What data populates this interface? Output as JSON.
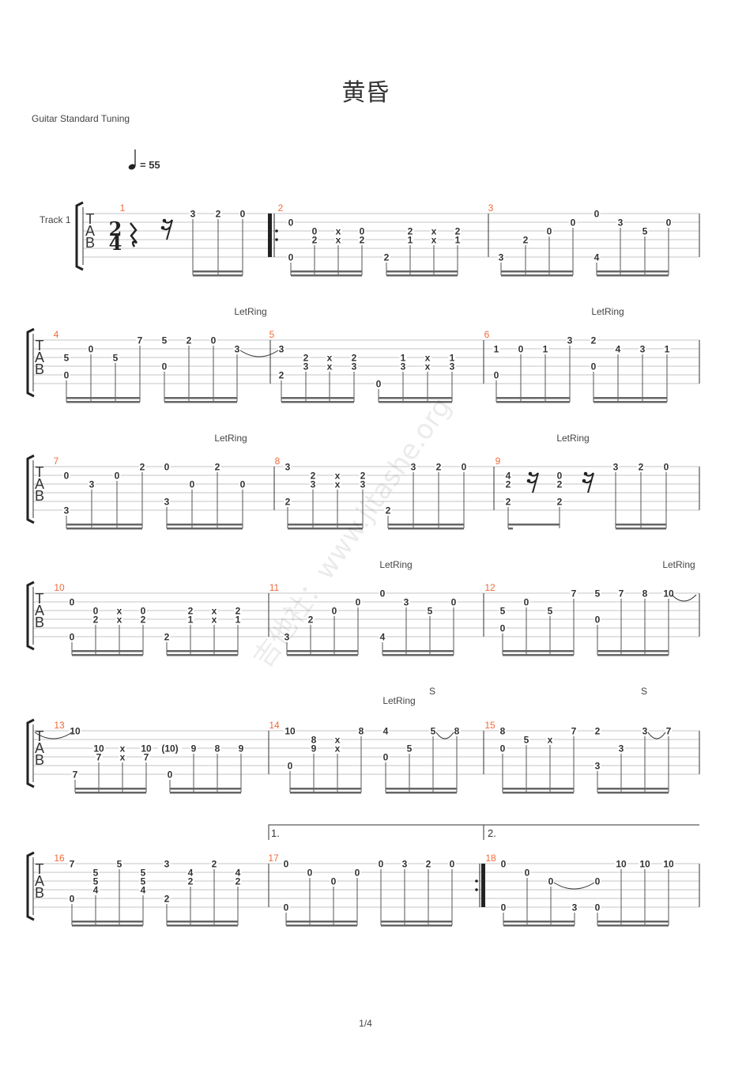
{
  "title": "黄昏",
  "tuning": "Guitar Standard Tuning",
  "tempo": {
    "symbol": "quarter-note",
    "text": "= 55"
  },
  "track": "Track 1",
  "tab_clef": [
    "T",
    "A",
    "B"
  ],
  "time_signature": {
    "top": "2",
    "bottom": "4"
  },
  "page_number": "1/4",
  "watermark": "吉他社：www.jitashe.org",
  "voltas": [
    "1.",
    "2."
  ],
  "colors": {
    "measure_number": "#f26a3b",
    "staff": "#bbbbbb",
    "text": "#333333"
  },
  "measures": [
    {
      "number": "1",
      "rests": [
        "quarter",
        "sixteenth"
      ],
      "beats": [
        [
          [
            1,
            "3"
          ]
        ],
        [
          [
            1,
            "2"
          ]
        ],
        [
          [
            1,
            "0"
          ]
        ]
      ]
    },
    {
      "number": "2",
      "repeat_start": true,
      "beats": [
        [
          [
            2,
            "0"
          ],
          [
            6,
            "0"
          ]
        ],
        [
          [
            3,
            "0"
          ],
          [
            4,
            "2"
          ]
        ],
        [
          [
            3,
            "x"
          ],
          [
            4,
            "x"
          ]
        ],
        [
          [
            3,
            "0"
          ],
          [
            4,
            "2"
          ]
        ],
        [
          [
            6,
            "2"
          ]
        ],
        [
          [
            3,
            "2"
          ],
          [
            4,
            "1"
          ]
        ],
        [
          [
            3,
            "x"
          ],
          [
            4,
            "x"
          ]
        ],
        [
          [
            3,
            "2"
          ],
          [
            4,
            "1"
          ]
        ]
      ]
    },
    {
      "number": "3",
      "annotations": [
        "LetRing"
      ],
      "beats": [
        [
          [
            6,
            "3"
          ]
        ],
        [
          [
            4,
            "2"
          ]
        ],
        [
          [
            3,
            "0"
          ]
        ],
        [
          [
            2,
            "0"
          ]
        ],
        [
          [
            1,
            "0"
          ],
          [
            6,
            "4"
          ]
        ],
        [
          [
            2,
            "3"
          ]
        ],
        [
          [
            3,
            "5"
          ]
        ],
        [
          [
            2,
            "0"
          ]
        ]
      ]
    },
    {
      "number": "4",
      "annotations": [
        "LetRing"
      ],
      "beats": [
        [
          [
            3,
            "5"
          ],
          [
            5,
            "0"
          ]
        ],
        [
          [
            2,
            "0"
          ]
        ],
        [
          [
            3,
            "5"
          ]
        ],
        [
          [
            1,
            "7"
          ]
        ],
        [
          [
            1,
            "5"
          ],
          [
            4,
            "0"
          ]
        ],
        [
          [
            1,
            "2"
          ]
        ],
        [
          [
            1,
            "0"
          ]
        ],
        [
          [
            2,
            "3"
          ]
        ]
      ]
    },
    {
      "number": "5",
      "beats": [
        [
          [
            2,
            "3"
          ],
          [
            5,
            "2"
          ]
        ],
        [
          [
            3,
            "2"
          ],
          [
            4,
            "3"
          ]
        ],
        [
          [
            3,
            "x"
          ],
          [
            4,
            "x"
          ]
        ],
        [
          [
            3,
            "2"
          ],
          [
            4,
            "3"
          ]
        ],
        [
          [
            6,
            "0"
          ]
        ],
        [
          [
            3,
            "1"
          ],
          [
            4,
            "3"
          ]
        ],
        [
          [
            3,
            "x"
          ],
          [
            4,
            "x"
          ]
        ],
        [
          [
            3,
            "1"
          ],
          [
            4,
            "3"
          ]
        ]
      ]
    },
    {
      "number": "6",
      "annotations": [
        "LetRing"
      ],
      "beats": [
        [
          [
            2,
            "1"
          ],
          [
            5,
            "0"
          ]
        ],
        [
          [
            2,
            "0"
          ]
        ],
        [
          [
            2,
            "1"
          ]
        ],
        [
          [
            1,
            "3"
          ]
        ],
        [
          [
            1,
            "2"
          ],
          [
            4,
            "0"
          ]
        ],
        [
          [
            2,
            "4"
          ]
        ],
        [
          [
            2,
            "3"
          ]
        ],
        [
          [
            2,
            "1"
          ]
        ]
      ]
    },
    {
      "number": "7",
      "annotations": [
        "LetRing"
      ],
      "beats": [
        [
          [
            2,
            "0"
          ],
          [
            6,
            "3"
          ]
        ],
        [
          [
            3,
            "3"
          ]
        ],
        [
          [
            2,
            "0"
          ]
        ],
        [
          [
            1,
            "2"
          ]
        ],
        [
          [
            1,
            "0"
          ],
          [
            5,
            "3"
          ]
        ],
        [
          [
            3,
            "0"
          ]
        ],
        [
          [
            1,
            "2"
          ]
        ],
        [
          [
            3,
            "0"
          ]
        ]
      ]
    },
    {
      "number": "8",
      "beats": [
        [
          [
            1,
            "3"
          ],
          [
            5,
            "2"
          ]
        ],
        [
          [
            2,
            "2"
          ],
          [
            3,
            "3"
          ]
        ],
        [
          [
            2,
            "x"
          ],
          [
            3,
            "x"
          ]
        ],
        [
          [
            2,
            "2"
          ],
          [
            3,
            "3"
          ]
        ],
        [
          [
            6,
            "2"
          ]
        ],
        [
          [
            1,
            "3"
          ]
        ],
        [
          [
            1,
            "2"
          ]
        ],
        [
          [
            1,
            "0"
          ]
        ]
      ]
    },
    {
      "number": "9",
      "annotations": [
        "LetRing"
      ],
      "rests": [
        "sixteenth",
        "sixteenth"
      ],
      "beats": [
        [
          [
            2,
            "4"
          ],
          [
            3,
            "2"
          ],
          [
            5,
            "2"
          ]
        ],
        [
          [
            2,
            "0"
          ],
          [
            3,
            "2"
          ],
          [
            5,
            "2"
          ]
        ],
        [
          [
            1,
            "3"
          ]
        ],
        [
          [
            1,
            "2"
          ]
        ],
        [
          [
            1,
            "0"
          ]
        ]
      ]
    },
    {
      "number": "10",
      "beats": [
        [
          [
            2,
            "0"
          ],
          [
            6,
            "0"
          ]
        ],
        [
          [
            3,
            "0"
          ],
          [
            4,
            "2"
          ]
        ],
        [
          [
            3,
            "x"
          ],
          [
            4,
            "x"
          ]
        ],
        [
          [
            3,
            "0"
          ],
          [
            4,
            "2"
          ]
        ],
        [
          [
            6,
            "2"
          ]
        ],
        [
          [
            3,
            "2"
          ],
          [
            4,
            "1"
          ]
        ],
        [
          [
            3,
            "x"
          ],
          [
            4,
            "x"
          ]
        ],
        [
          [
            3,
            "2"
          ],
          [
            4,
            "1"
          ]
        ]
      ]
    },
    {
      "number": "11",
      "annotations": [
        "LetRing"
      ],
      "beats": [
        [
          [
            6,
            "3"
          ]
        ],
        [
          [
            4,
            "2"
          ]
        ],
        [
          [
            3,
            "0"
          ]
        ],
        [
          [
            2,
            "0"
          ]
        ],
        [
          [
            1,
            "0"
          ],
          [
            6,
            "4"
          ]
        ],
        [
          [
            2,
            "3"
          ]
        ],
        [
          [
            3,
            "5"
          ]
        ],
        [
          [
            2,
            "0"
          ]
        ]
      ]
    },
    {
      "number": "12",
      "annotations": [
        "LetRing"
      ],
      "beats": [
        [
          [
            3,
            "5"
          ],
          [
            5,
            "0"
          ]
        ],
        [
          [
            2,
            "0"
          ]
        ],
        [
          [
            3,
            "5"
          ]
        ],
        [
          [
            1,
            "7"
          ]
        ],
        [
          [
            1,
            "5"
          ],
          [
            4,
            "0"
          ]
        ],
        [
          [
            1,
            "7"
          ]
        ],
        [
          [
            1,
            "8"
          ]
        ],
        [
          [
            1,
            "10"
          ]
        ]
      ]
    },
    {
      "number": "13",
      "beats": [
        [
          [
            1,
            "10"
          ],
          [
            6,
            "7"
          ]
        ],
        [
          [
            3,
            "10"
          ],
          [
            4,
            "7"
          ]
        ],
        [
          [
            3,
            "x"
          ],
          [
            4,
            "x"
          ]
        ],
        [
          [
            3,
            "10"
          ],
          [
            4,
            "7"
          ]
        ],
        [
          [
            3,
            "(10)"
          ],
          [
            6,
            "0"
          ]
        ],
        [
          [
            3,
            "9"
          ]
        ],
        [
          [
            3,
            "8"
          ]
        ],
        [
          [
            3,
            "9"
          ]
        ]
      ]
    },
    {
      "number": "14",
      "annotations": [
        "LetRing",
        "S"
      ],
      "beats": [
        [
          [
            1,
            "10"
          ],
          [
            5,
            "0"
          ]
        ],
        [
          [
            2,
            "8"
          ],
          [
            3,
            "9"
          ]
        ],
        [
          [
            2,
            "x"
          ],
          [
            3,
            "x"
          ]
        ],
        [
          [
            1,
            "8"
          ]
        ],
        [
          [
            1,
            "4"
          ],
          [
            4,
            "0"
          ]
        ],
        [
          [
            3,
            "5"
          ]
        ],
        [
          [
            1,
            "5"
          ]
        ],
        [
          [
            1,
            "8"
          ]
        ]
      ]
    },
    {
      "number": "15",
      "annotations": [
        "S"
      ],
      "beats": [
        [
          [
            1,
            "8"
          ],
          [
            3,
            "0"
          ]
        ],
        [
          [
            2,
            "5"
          ]
        ],
        [
          [
            2,
            "x"
          ]
        ],
        [
          [
            1,
            "7"
          ]
        ],
        [
          [
            1,
            "2"
          ],
          [
            5,
            "3"
          ]
        ],
        [
          [
            3,
            "3"
          ]
        ],
        [
          [
            1,
            "3"
          ]
        ],
        [
          [
            1,
            "7"
          ]
        ]
      ]
    },
    {
      "number": "16",
      "beats": [
        [
          [
            1,
            "7"
          ],
          [
            5,
            "0"
          ]
        ],
        [
          [
            2,
            "5"
          ],
          [
            3,
            "5"
          ],
          [
            4,
            "4"
          ]
        ],
        [
          [
            1,
            "5"
          ]
        ],
        [
          [
            2,
            "5"
          ],
          [
            3,
            "5"
          ],
          [
            4,
            "4"
          ]
        ],
        [
          [
            1,
            "3"
          ],
          [
            5,
            "2"
          ]
        ],
        [
          [
            2,
            "4"
          ],
          [
            3,
            "2"
          ]
        ],
        [
          [
            1,
            "2"
          ]
        ],
        [
          [
            2,
            "4"
          ],
          [
            3,
            "2"
          ]
        ]
      ]
    },
    {
      "number": "17",
      "beats": [
        [
          [
            1,
            "0"
          ],
          [
            6,
            "0"
          ]
        ],
        [
          [
            2,
            "0"
          ]
        ],
        [
          [
            3,
            "0"
          ]
        ],
        [
          [
            2,
            "0"
          ]
        ],
        [
          [
            1,
            "0"
          ]
        ],
        [
          [
            1,
            "3"
          ]
        ],
        [
          [
            1,
            "2"
          ]
        ],
        [
          [
            1,
            "0"
          ]
        ]
      ]
    },
    {
      "number": "18",
      "repeat_end_before": true,
      "beats": [
        [
          [
            1,
            "0"
          ],
          [
            6,
            "0"
          ]
        ],
        [
          [
            2,
            "0"
          ]
        ],
        [
          [
            3,
            "0"
          ]
        ],
        [
          [
            6,
            "3"
          ]
        ],
        [
          [
            3,
            "0"
          ],
          [
            6,
            "0"
          ]
        ],
        [
          [
            1,
            "10"
          ]
        ],
        [
          [
            1,
            "10"
          ]
        ],
        [
          [
            1,
            "10"
          ]
        ]
      ]
    }
  ]
}
